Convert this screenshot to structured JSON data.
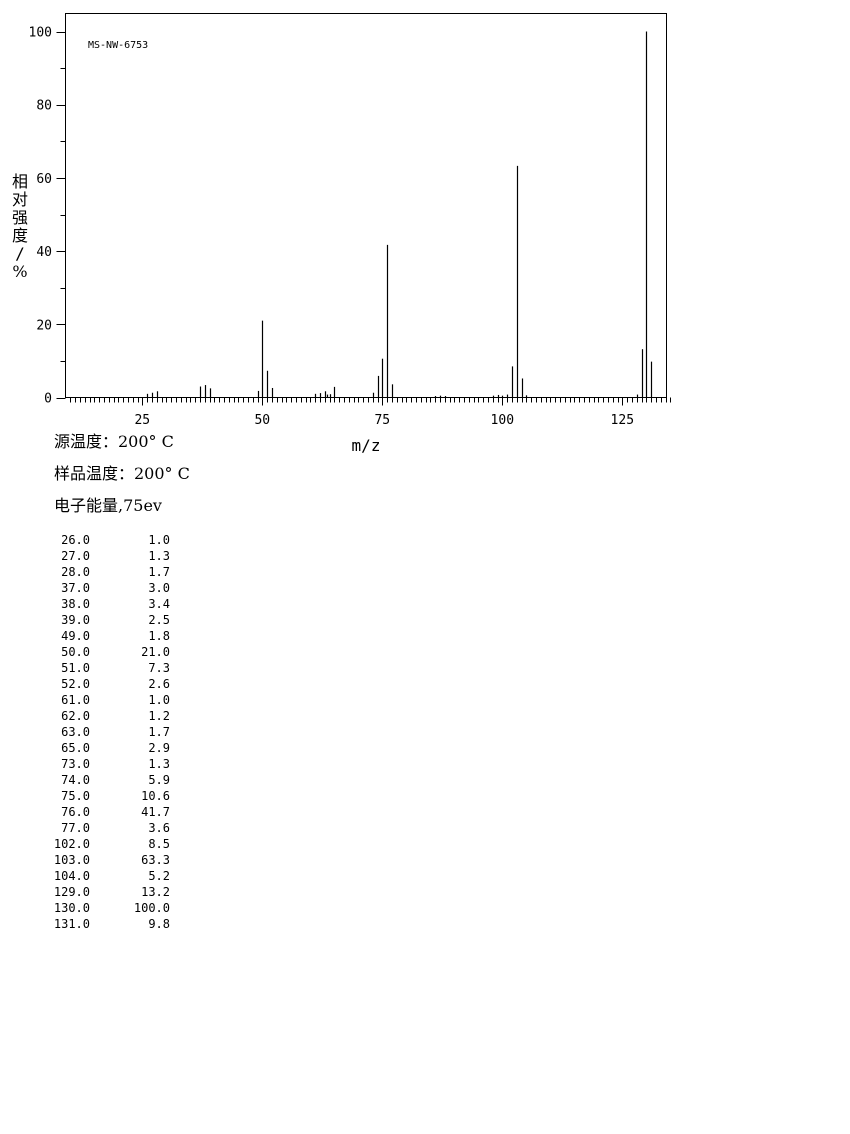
{
  "chart_data": {
    "type": "bar",
    "sample_id": "MS-NW-6753",
    "xlabel": "m/z",
    "ylabel": "相对强度/%",
    "xlim": [
      9,
      136
    ],
    "ylim": [
      0,
      105
    ],
    "x_major_ticks": [
      25,
      50,
      75,
      100,
      125
    ],
    "y_major_ticks": [
      0,
      20,
      40,
      60,
      80,
      100
    ],
    "grid": false,
    "minor_peaks": [
      {
        "mz": 63.5,
        "abundance": 0.8
      },
      {
        "mz": 64,
        "abundance": 0.9
      },
      {
        "mz": 86,
        "abundance": 0.4
      },
      {
        "mz": 87,
        "abundance": 0.5
      },
      {
        "mz": 88,
        "abundance": 0.4
      },
      {
        "mz": 98,
        "abundance": 0.5
      },
      {
        "mz": 99,
        "abundance": 0.7
      },
      {
        "mz": 100,
        "abundance": 0.5
      },
      {
        "mz": 101,
        "abundance": 0.8
      },
      {
        "mz": 105,
        "abundance": 0.6
      },
      {
        "mz": 128,
        "abundance": 0.8
      }
    ]
  },
  "conditions": {
    "source_temp": "源温度：200° C",
    "sample_temp": "样品温度：200° C",
    "electron_energy": "电子能量,75ev"
  },
  "peaks": [
    {
      "mz": "26.0",
      "abundance": "1.0"
    },
    {
      "mz": "27.0",
      "abundance": "1.3"
    },
    {
      "mz": "28.0",
      "abundance": "1.7"
    },
    {
      "mz": "37.0",
      "abundance": "3.0"
    },
    {
      "mz": "38.0",
      "abundance": "3.4"
    },
    {
      "mz": "39.0",
      "abundance": "2.5"
    },
    {
      "mz": "49.0",
      "abundance": "1.8"
    },
    {
      "mz": "50.0",
      "abundance": "21.0"
    },
    {
      "mz": "51.0",
      "abundance": "7.3"
    },
    {
      "mz": "52.0",
      "abundance": "2.6"
    },
    {
      "mz": "61.0",
      "abundance": "1.0"
    },
    {
      "mz": "62.0",
      "abundance": "1.2"
    },
    {
      "mz": "63.0",
      "abundance": "1.7"
    },
    {
      "mz": "65.0",
      "abundance": "2.9"
    },
    {
      "mz": "73.0",
      "abundance": "1.3"
    },
    {
      "mz": "74.0",
      "abundance": "5.9"
    },
    {
      "mz": "75.0",
      "abundance": "10.6"
    },
    {
      "mz": "76.0",
      "abundance": "41.7"
    },
    {
      "mz": "77.0",
      "abundance": "3.6"
    },
    {
      "mz": "102.0",
      "abundance": "8.5"
    },
    {
      "mz": "103.0",
      "abundance": "63.3"
    },
    {
      "mz": "104.0",
      "abundance": "5.2"
    },
    {
      "mz": "129.0",
      "abundance": "13.2"
    },
    {
      "mz": "130.0",
      "abundance": "100.0"
    },
    {
      "mz": "131.0",
      "abundance": "9.8"
    }
  ]
}
